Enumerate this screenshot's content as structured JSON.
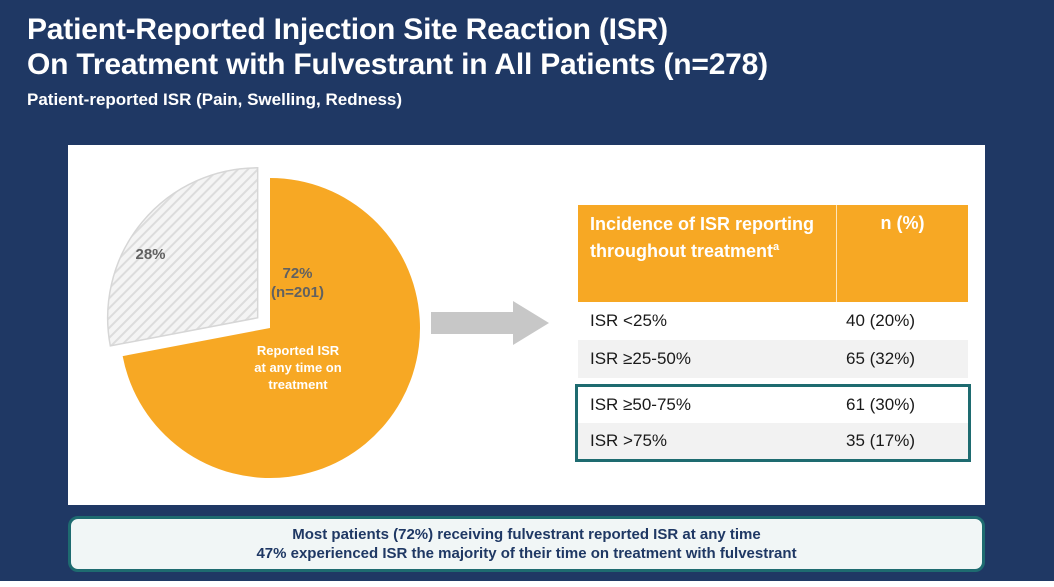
{
  "slide": {
    "title_line1": "Patient-Reported Injection Site Reaction (ISR)",
    "title_line2": "On Treatment with Fulvestrant in All Patients (n=278)",
    "subtitle": "Patient-reported ISR (Pain, Swelling, Redness)"
  },
  "colors": {
    "background_navy": "#1F3864",
    "accent_orange": "#F7A824",
    "accent_teal": "#1E6B70",
    "row_alt_gray": "#F2F2F2",
    "arrow_gray": "#C7C7C7",
    "label_gray": "#616161"
  },
  "chart_data": [
    {
      "type": "pie",
      "n_total": 278,
      "slices": [
        {
          "label": "Reported ISR at any time on treatment",
          "pct": 72,
          "n": 201,
          "color": "#F7A824",
          "exploded": false
        },
        {
          "label": "",
          "pct": 28,
          "pattern": "hatch",
          "exploded": true
        }
      ],
      "labels": {
        "gray_pct": "28%",
        "orange_pct": "72%",
        "orange_n": "(n=201)",
        "orange_caption": "Reported ISR\nat any time on\ntreatment"
      },
      "start_angle_deg": 0,
      "direction": "clockwise"
    },
    {
      "type": "table",
      "header": {
        "col1": "Incidence of ISR reporting throughout treatment",
        "sup": "a",
        "col2": "n (%)"
      },
      "rows": [
        [
          "ISR <25%",
          "40 (20%)"
        ],
        [
          "ISR ≥25-50%",
          "65 (32%)"
        ],
        [
          "ISR ≥50-75%",
          "61 (30%)"
        ],
        [
          "ISR >75%",
          "35 (17%)"
        ]
      ],
      "highlighted_rows": [
        2,
        3
      ]
    }
  ],
  "callout": {
    "line1": "Most patients (72%) receiving fulvestrant reported ISR at any time",
    "line2": "47% experienced ISR the majority of their time on treatment with fulvestrant"
  }
}
